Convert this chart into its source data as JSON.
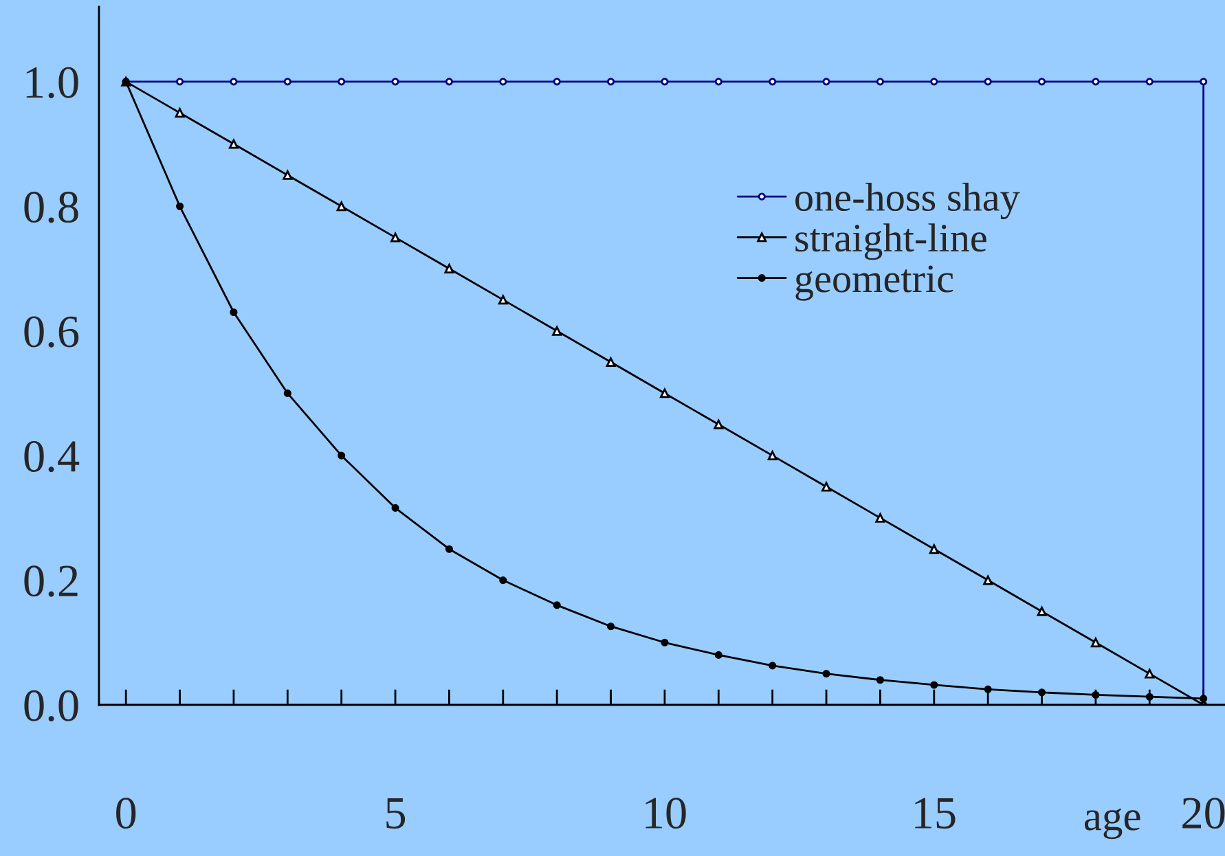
{
  "chart_data": {
    "type": "line",
    "xlabel": "age",
    "x": [
      0,
      1,
      2,
      3,
      4,
      5,
      6,
      7,
      8,
      9,
      10,
      11,
      12,
      13,
      14,
      15,
      16,
      17,
      18,
      19,
      20
    ],
    "series": [
      {
        "name": "one-hoss shay",
        "color": "#000080",
        "marker": "circle",
        "x": [
          0,
          1,
          2,
          3,
          4,
          5,
          6,
          7,
          8,
          9,
          10,
          11,
          12,
          13,
          14,
          15,
          16,
          17,
          18,
          19,
          20,
          20
        ],
        "values": [
          1,
          1,
          1,
          1,
          1,
          1,
          1,
          1,
          1,
          1,
          1,
          1,
          1,
          1,
          1,
          1,
          1,
          1,
          1,
          1,
          1,
          0
        ]
      },
      {
        "name": "straight-line",
        "color": "#000000",
        "marker": "triangle",
        "values": [
          1,
          0.95,
          0.9,
          0.85,
          0.8,
          0.75,
          0.7,
          0.65,
          0.6,
          0.55,
          0.5,
          0.45,
          0.4,
          0.35,
          0.3,
          0.25,
          0.2,
          0.15,
          0.1,
          0.05,
          0
        ]
      },
      {
        "name": "geometric",
        "color": "#000000",
        "marker": "circle",
        "values": [
          1,
          0.8,
          0.63,
          0.5,
          0.4,
          0.316,
          0.25,
          0.2,
          0.16,
          0.126,
          0.1,
          0.08,
          0.063,
          0.05,
          0.04,
          0.032,
          0.025,
          0.02,
          0.016,
          0.013,
          0.01
        ]
      }
    ],
    "xlim": [
      -0.5,
      20.4
    ],
    "ylim": [
      0,
      1.12
    ],
    "xticks": [
      0,
      {
        "value": 1,
        "label": null
      },
      {
        "value": 2,
        "label": null
      },
      {
        "value": 3,
        "label": null
      },
      {
        "value": 4,
        "label": null
      },
      5,
      {
        "value": 6,
        "label": null
      },
      {
        "value": 7,
        "label": null
      },
      {
        "value": 8,
        "label": null
      },
      {
        "value": 9,
        "label": null
      },
      10,
      {
        "value": 11,
        "label": null
      },
      {
        "value": 12,
        "label": null
      },
      {
        "value": 13,
        "label": null
      },
      {
        "value": 14,
        "label": null
      },
      15,
      {
        "value": 16,
        "label": null
      },
      {
        "value": 17,
        "label": null
      },
      {
        "value": 18,
        "label": null
      },
      {
        "value": 19,
        "label": null
      },
      20
    ],
    "yticks": [
      {
        "value": 0,
        "label": "0.0"
      },
      {
        "value": 0.2,
        "label": "0.2"
      },
      {
        "value": 0.4,
        "label": "0.4"
      },
      {
        "value": 0.6,
        "label": "0.6"
      },
      {
        "value": 0.8,
        "label": "0.8"
      },
      {
        "value": 1.0,
        "label": "1.0"
      }
    ],
    "legend": "top right",
    "grid": false,
    "line_style": "solid"
  }
}
